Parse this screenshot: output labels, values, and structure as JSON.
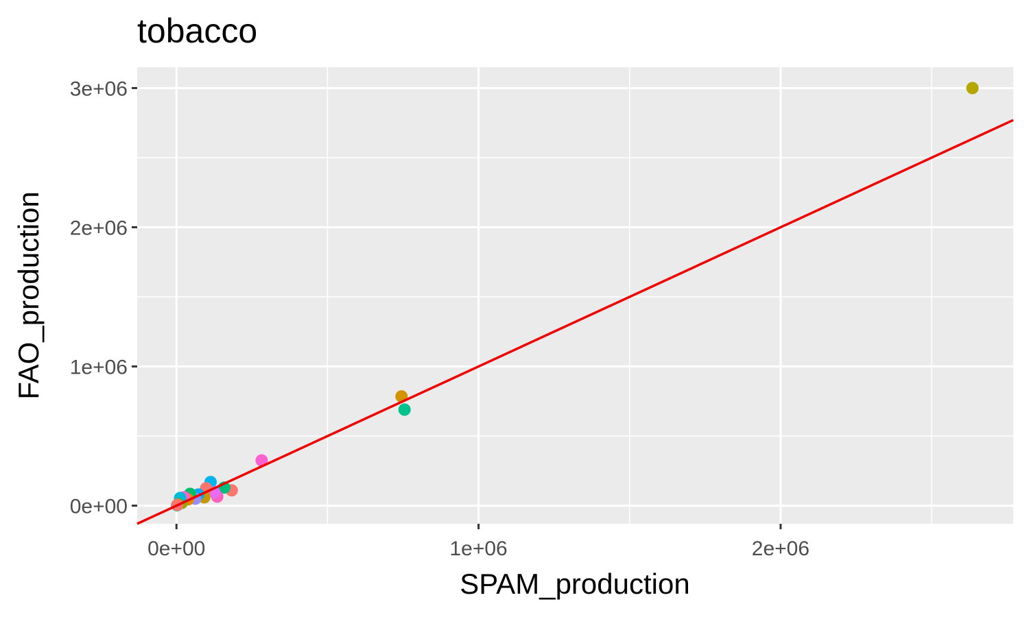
{
  "chart_data": {
    "type": "scatter",
    "title": "tobacco",
    "xlabel": "SPAM_production",
    "ylabel": "FAO_production",
    "xlim": [
      -130000,
      2770000
    ],
    "ylim": [
      -130000,
      3150000
    ],
    "x_ticks": [
      {
        "value": 0,
        "label": "0e+00"
      },
      {
        "value": 1000000,
        "label": "1e+06"
      },
      {
        "value": 2000000,
        "label": "2e+06"
      }
    ],
    "y_ticks": [
      {
        "value": 0,
        "label": "0e+00"
      },
      {
        "value": 1000000,
        "label": "1e+06"
      },
      {
        "value": 2000000,
        "label": "2e+06"
      },
      {
        "value": 3000000,
        "label": "3e+06"
      }
    ],
    "x_minor": [
      500000,
      1500000,
      2500000
    ],
    "y_minor": [
      500000,
      1500000,
      2500000
    ],
    "grid": true,
    "legend": "none",
    "panel_background": "#ebebeb",
    "reference_line": {
      "slope": 1,
      "intercept": 0,
      "color": "#ee0000"
    },
    "points": [
      {
        "x": 2635000,
        "y": 3000000,
        "color": "#b5a600"
      },
      {
        "x": 745000,
        "y": 785000,
        "color": "#d39200"
      },
      {
        "x": 755000,
        "y": 690000,
        "color": "#00c08b"
      },
      {
        "x": 282000,
        "y": 325000,
        "color": "#fd61d1"
      },
      {
        "x": 183000,
        "y": 110000,
        "color": "#f8766d"
      },
      {
        "x": 158000,
        "y": 130000,
        "color": "#00bf7d"
      },
      {
        "x": 113000,
        "y": 170000,
        "color": "#00b4f0"
      },
      {
        "x": 135000,
        "y": 65000,
        "color": "#ff62bc"
      },
      {
        "x": 125000,
        "y": 95000,
        "color": "#e76bf3"
      },
      {
        "x": 98000,
        "y": 125000,
        "color": "#f8766d"
      },
      {
        "x": 92000,
        "y": 60000,
        "color": "#c49a00"
      },
      {
        "x": 72000,
        "y": 80000,
        "color": "#00a9ff"
      },
      {
        "x": 62000,
        "y": 50000,
        "color": "#9590ff"
      },
      {
        "x": 45000,
        "y": 85000,
        "color": "#00be67"
      },
      {
        "x": 38000,
        "y": 45000,
        "color": "#e58700"
      },
      {
        "x": 25000,
        "y": 60000,
        "color": "#fd61d1"
      },
      {
        "x": 18000,
        "y": 20000,
        "color": "#a3a500"
      },
      {
        "x": 12000,
        "y": 55000,
        "color": "#00bcd8"
      },
      {
        "x": 6000,
        "y": 10000,
        "color": "#6bb100"
      },
      {
        "x": 2000,
        "y": 3000,
        "color": "#00c1a9"
      },
      {
        "x": 3000,
        "y": 6000,
        "color": "#f8766d"
      }
    ]
  }
}
